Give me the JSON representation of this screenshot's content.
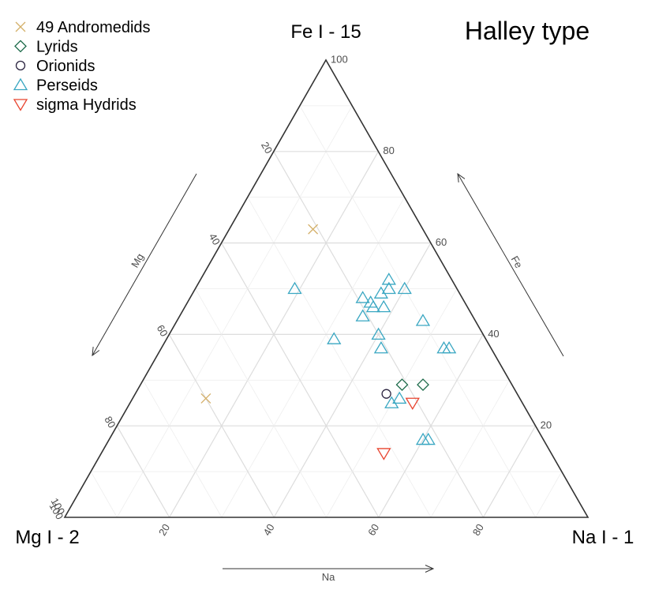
{
  "chart_data": {
    "type": "scatter",
    "subtype": "ternary",
    "title": "Halley type",
    "vertices": {
      "top": "Fe I - 15",
      "left": "Mg I - 2",
      "right": "Na I - 1"
    },
    "axes": {
      "mg": "Mg",
      "fe": "Fe",
      "na": "Na"
    },
    "ticks": [
      "20",
      "40",
      "60",
      "80",
      "100"
    ],
    "corner_tick": "100",
    "grid": true,
    "legend_position": "top-left",
    "series": [
      {
        "name": "49 Andromedids",
        "marker": "x",
        "color": "#d4b06a",
        "points": [
          [
            60,
            26,
            14
          ],
          [
            21,
            63,
            16
          ]
        ]
      },
      {
        "name": "Lyrids",
        "marker": "diamond",
        "color": "#1d6b4a",
        "points": [
          [
            21,
            29,
            50
          ],
          [
            17,
            29,
            54
          ]
        ]
      },
      {
        "name": "Orionids",
        "marker": "circle",
        "color": "#2b2440",
        "points": [
          [
            25,
            27,
            48
          ]
        ]
      },
      {
        "name": "Perseids",
        "marker": "triangle",
        "color": "#3aa7c2",
        "points": [
          [
            8,
            37,
            55
          ],
          [
            9,
            37,
            54
          ],
          [
            10,
            43,
            47
          ],
          [
            10,
            50,
            40
          ],
          [
            12,
            52,
            36
          ],
          [
            13,
            50,
            37
          ],
          [
            15,
            49,
            36
          ],
          [
            16,
            46,
            38
          ],
          [
            18,
            47,
            35
          ],
          [
            18,
            46,
            36
          ],
          [
            19,
            48,
            33
          ],
          [
            20,
            40,
            40
          ],
          [
            21,
            37,
            42
          ],
          [
            21,
            44,
            35
          ],
          [
            22,
            17,
            61
          ],
          [
            23,
            17,
            60
          ],
          [
            23,
            26,
            51
          ],
          [
            25,
            25,
            50
          ],
          [
            29,
            39,
            32
          ],
          [
            31,
            50,
            19
          ]
        ]
      },
      {
        "name": "sigma Hydrids",
        "marker": "triangle-down",
        "color": "#e8432e",
        "points": [
          [
            21,
            25,
            54
          ],
          [
            32,
            14,
            54
          ]
        ]
      }
    ]
  }
}
